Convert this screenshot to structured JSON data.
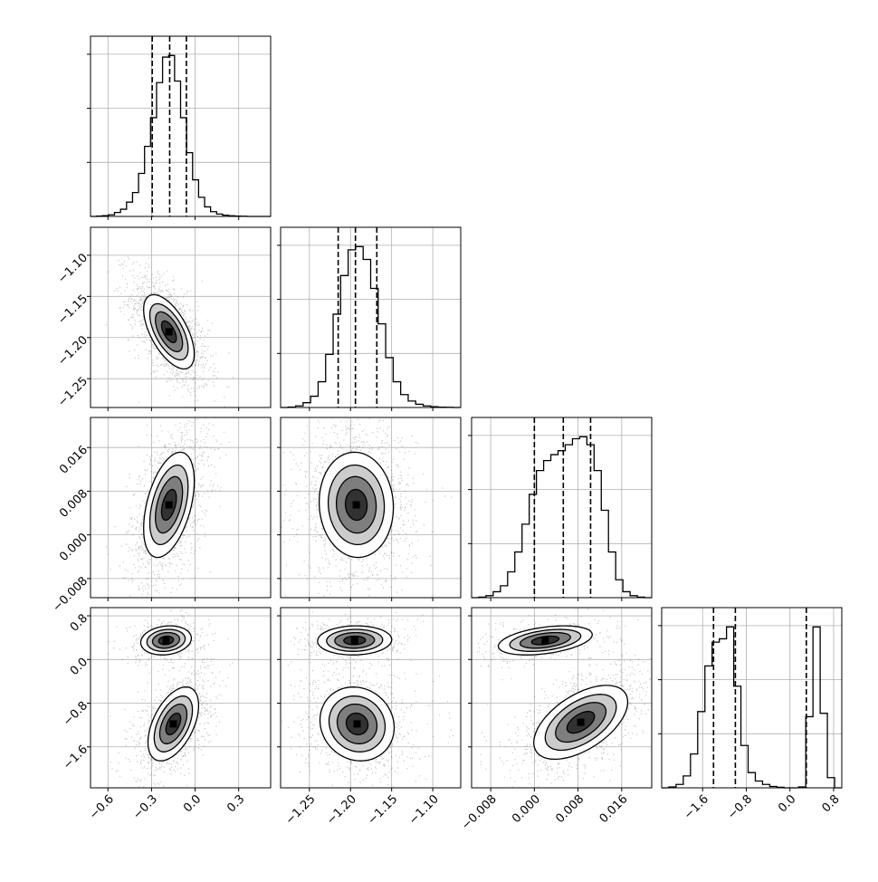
{
  "chart_data": {
    "type": "corner",
    "style": {
      "line_color": "#000000",
      "grid_color": "#b0b0b0",
      "scatter_color": "#000000",
      "density_fill": "#000000"
    },
    "variables": [
      {
        "range": [
          -0.72,
          0.52
        ],
        "ticks": [
          -0.6,
          -0.3,
          0.0,
          0.3
        ],
        "tick_labels": [
          "−0.6",
          "−0.3",
          "0.0",
          "0.3"
        ],
        "mean": -0.18,
        "sd": 0.085,
        "quantiles": [
          -0.295,
          -0.175,
          -0.06
        ]
      },
      {
        "range": [
          -1.285,
          -1.066
        ],
        "ticks": [
          -1.25,
          -1.2,
          -1.15,
          -1.1
        ],
        "tick_labels": [
          "−1.25",
          "−1.20",
          "−1.15",
          "−1.10"
        ],
        "mean": -1.193,
        "sd": 0.022,
        "quantiles": [
          -1.215,
          -1.194,
          -1.168
        ]
      },
      {
        "range": [
          -0.0115,
          0.0215
        ],
        "ticks": [
          -0.008,
          0.0,
          0.008,
          0.016
        ],
        "tick_labels": [
          "−0.008",
          "0.000",
          "0.008",
          "0.016"
        ],
        "mean": 0.0055,
        "sd": 0.0047,
        "quantiles": [
          0.0,
          0.0053,
          0.0103
        ]
      },
      {
        "range": [
          -2.35,
          0.95
        ],
        "ticks": [
          -1.6,
          -0.8,
          0.0,
          0.8
        ],
        "tick_labels": [
          "−1.6",
          "−0.8",
          "0.0",
          "0.8"
        ],
        "mean": -0.95,
        "sd": 0.95,
        "quantiles": [
          -1.4,
          -1.0,
          0.3
        ]
      }
    ],
    "diagonal_histograms": [
      {
        "bins_x": [
          -0.72,
          0.52
        ],
        "counts": [
          0,
          2,
          5,
          10,
          25,
          45,
          90,
          150,
          270,
          440,
          620,
          840,
          1000,
          1010,
          850,
          620,
          400,
          230,
          120,
          60,
          30,
          15,
          8,
          4,
          2,
          1,
          0,
          0,
          0,
          0
        ]
      },
      {
        "bins_x": [
          -1.285,
          -1.066
        ],
        "counts": [
          0,
          3,
          10,
          30,
          70,
          160,
          330,
          580,
          820,
          980,
          1000,
          920,
          740,
          520,
          310,
          160,
          80,
          40,
          20,
          10,
          5,
          2,
          1,
          0
        ]
      },
      {
        "bins_x": [
          -0.0115,
          0.0215
        ],
        "counts": [
          0,
          3,
          10,
          30,
          60,
          130,
          230,
          370,
          520,
          640,
          690,
          720,
          740,
          770,
          800,
          810,
          770,
          640,
          440,
          230,
          90,
          30,
          10,
          3,
          0
        ]
      },
      {
        "bins_x": [
          -2.35,
          0.95
        ],
        "counts": [
          0,
          5,
          20,
          70,
          200,
          450,
          720,
          860,
          880,
          950,
          600,
          250,
          90,
          40,
          20,
          8,
          3,
          0,
          0,
          5,
          420,
          950,
          440,
          60,
          0
        ]
      }
    ],
    "pairs": [
      {
        "row": 1,
        "col": 0,
        "clusters": [
          {
            "mx": -0.18,
            "my": -1.193,
            "sx": 0.085,
            "sy": 0.022,
            "rho": -0.6
          }
        ]
      },
      {
        "row": 2,
        "col": 0,
        "clusters": [
          {
            "mx": -0.18,
            "my": 0.0055,
            "sx": 0.085,
            "sy": 0.0047,
            "rho": 0.45
          }
        ]
      },
      {
        "row": 2,
        "col": 1,
        "clusters": [
          {
            "mx": -1.193,
            "my": 0.0055,
            "sx": 0.022,
            "sy": 0.0047,
            "rho": -0.05
          }
        ]
      },
      {
        "row": 3,
        "col": 0,
        "clusters": [
          {
            "mx": -0.2,
            "my": 0.35,
            "sx": 0.085,
            "sy": 0.13,
            "rho": 0.15,
            "w": 0.3
          },
          {
            "mx": -0.15,
            "my": -1.18,
            "sx": 0.085,
            "sy": 0.33,
            "rho": 0.5,
            "w": 0.7
          }
        ]
      },
      {
        "row": 3,
        "col": 1,
        "clusters": [
          {
            "mx": -1.195,
            "my": 0.35,
            "sx": 0.022,
            "sy": 0.13,
            "rho": 0.05,
            "w": 0.3
          },
          {
            "mx": -1.192,
            "my": -1.18,
            "sx": 0.022,
            "sy": 0.33,
            "rho": -0.1,
            "w": 0.7
          }
        ]
      },
      {
        "row": 3,
        "col": 2,
        "clusters": [
          {
            "mx": 0.002,
            "my": 0.35,
            "sx": 0.0042,
            "sy": 0.13,
            "rho": 0.4,
            "w": 0.3
          },
          {
            "mx": 0.0085,
            "my": -1.15,
            "sx": 0.0042,
            "sy": 0.33,
            "rho": 0.55,
            "w": 0.7
          }
        ]
      }
    ]
  }
}
